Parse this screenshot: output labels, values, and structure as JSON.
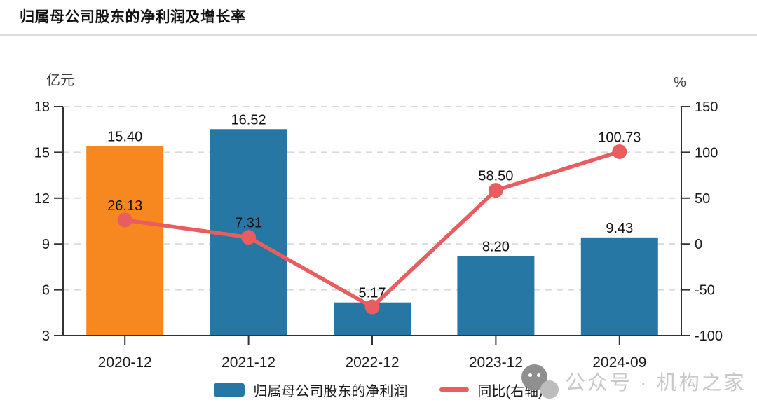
{
  "page": {
    "title": "归属母公司股东的净利润及增长率"
  },
  "colors": {
    "bar_highlight": "#F6881F",
    "bar_default": "#2677A3",
    "line": "#E95C5F",
    "grid": "#D9D9D9",
    "axis": "#333333",
    "text": "#1A1A1A",
    "unit_text": "#3D3D3D",
    "watermark_text": "#C8C8C8",
    "separator": "#DCDCDC"
  },
  "chart_data": {
    "type": "bar",
    "subtype": "bar+line combo, dual axis",
    "title": "归属母公司股东的净利润及增长率",
    "categories": [
      "2020-12",
      "2021-12",
      "2022-12",
      "2023-12",
      "2024-09"
    ],
    "series": [
      {
        "name": "归属母公司股东的净利润",
        "type": "bar",
        "axis": "left",
        "values": [
          15.4,
          16.52,
          5.17,
          8.2,
          9.43
        ],
        "labels": [
          "15.40",
          "16.52",
          "5.17",
          "8.20",
          "9.43"
        ],
        "bar_colors": [
          "#F6881F",
          "#2677A3",
          "#2677A3",
          "#2677A3",
          "#2677A3"
        ]
      },
      {
        "name": "同比(右轴)",
        "type": "line",
        "axis": "right",
        "values": [
          26.13,
          7.31,
          -68.7,
          58.5,
          100.73
        ],
        "labels": [
          "26.13",
          "7.31",
          "",
          "58.50",
          "100.73"
        ]
      }
    ],
    "left_axis": {
      "unit": "亿元",
      "min": 3,
      "max": 18,
      "ticks": [
        18,
        15,
        12,
        9,
        6,
        3
      ]
    },
    "right_axis": {
      "unit": "%",
      "min": -100,
      "max": 150,
      "ticks": [
        150,
        100,
        50,
        0,
        -50,
        -100
      ]
    },
    "grid": true,
    "gridline_style": "dashed",
    "legend_position": "bottom"
  },
  "legend": {
    "items": [
      {
        "label": "归属母公司股东的净利润",
        "marker": "bar"
      },
      {
        "label": "同比(右轴)",
        "marker": "line"
      }
    ]
  },
  "watermark": {
    "icon": "wechat-icon",
    "text": "公众号 · 机构之家"
  }
}
